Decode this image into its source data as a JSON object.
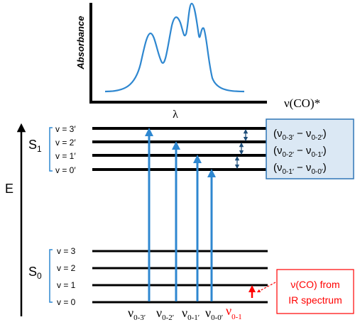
{
  "spectrum": {
    "ylabel": "Absorbance",
    "xlabel": "λ",
    "right_label": "ν(CO)*"
  },
  "energy_axis": {
    "label": "E"
  },
  "s1": {
    "state_label": "S",
    "state_sub": "1",
    "levels": [
      "v = 3′",
      "v = 2′",
      "v = 1′",
      "v = 0′"
    ]
  },
  "s0": {
    "state_label": "S",
    "state_sub": "0",
    "levels": [
      "v = 3",
      "v = 2",
      "v = 1",
      "v = 0"
    ]
  },
  "spacing_box": {
    "lines": [
      {
        "open": "(ν",
        "a_sub": "0-3′",
        "mid": " − ν",
        "b_sub": "0-2′",
        "close": ")"
      },
      {
        "open": "(ν",
        "a_sub": "0-2′",
        "mid": " − ν",
        "b_sub": "0-1′",
        "close": ")"
      },
      {
        "open": "(ν",
        "a_sub": "0-1′",
        "mid": " − ν",
        "b_sub": "0-0′",
        "close": ")"
      }
    ],
    "fill": "#dbe8f4",
    "border": "#2e75b6"
  },
  "transitions": [
    {
      "nu": "ν",
      "sub": "0-3′"
    },
    {
      "nu": "ν",
      "sub": "0-2′"
    },
    {
      "nu": "ν",
      "sub": "0-1′"
    },
    {
      "nu": "ν",
      "sub": "0-0′"
    }
  ],
  "ir_transition": {
    "nu": "ν",
    "sub": "0-1"
  },
  "ir_box": {
    "line1": "ν(CO) from",
    "line2": "IR spectrum",
    "color": "#ff0000"
  },
  "colors": {
    "blue": "#2e87d0",
    "red": "#ff0000",
    "dark_blue": "#1f4e79"
  }
}
